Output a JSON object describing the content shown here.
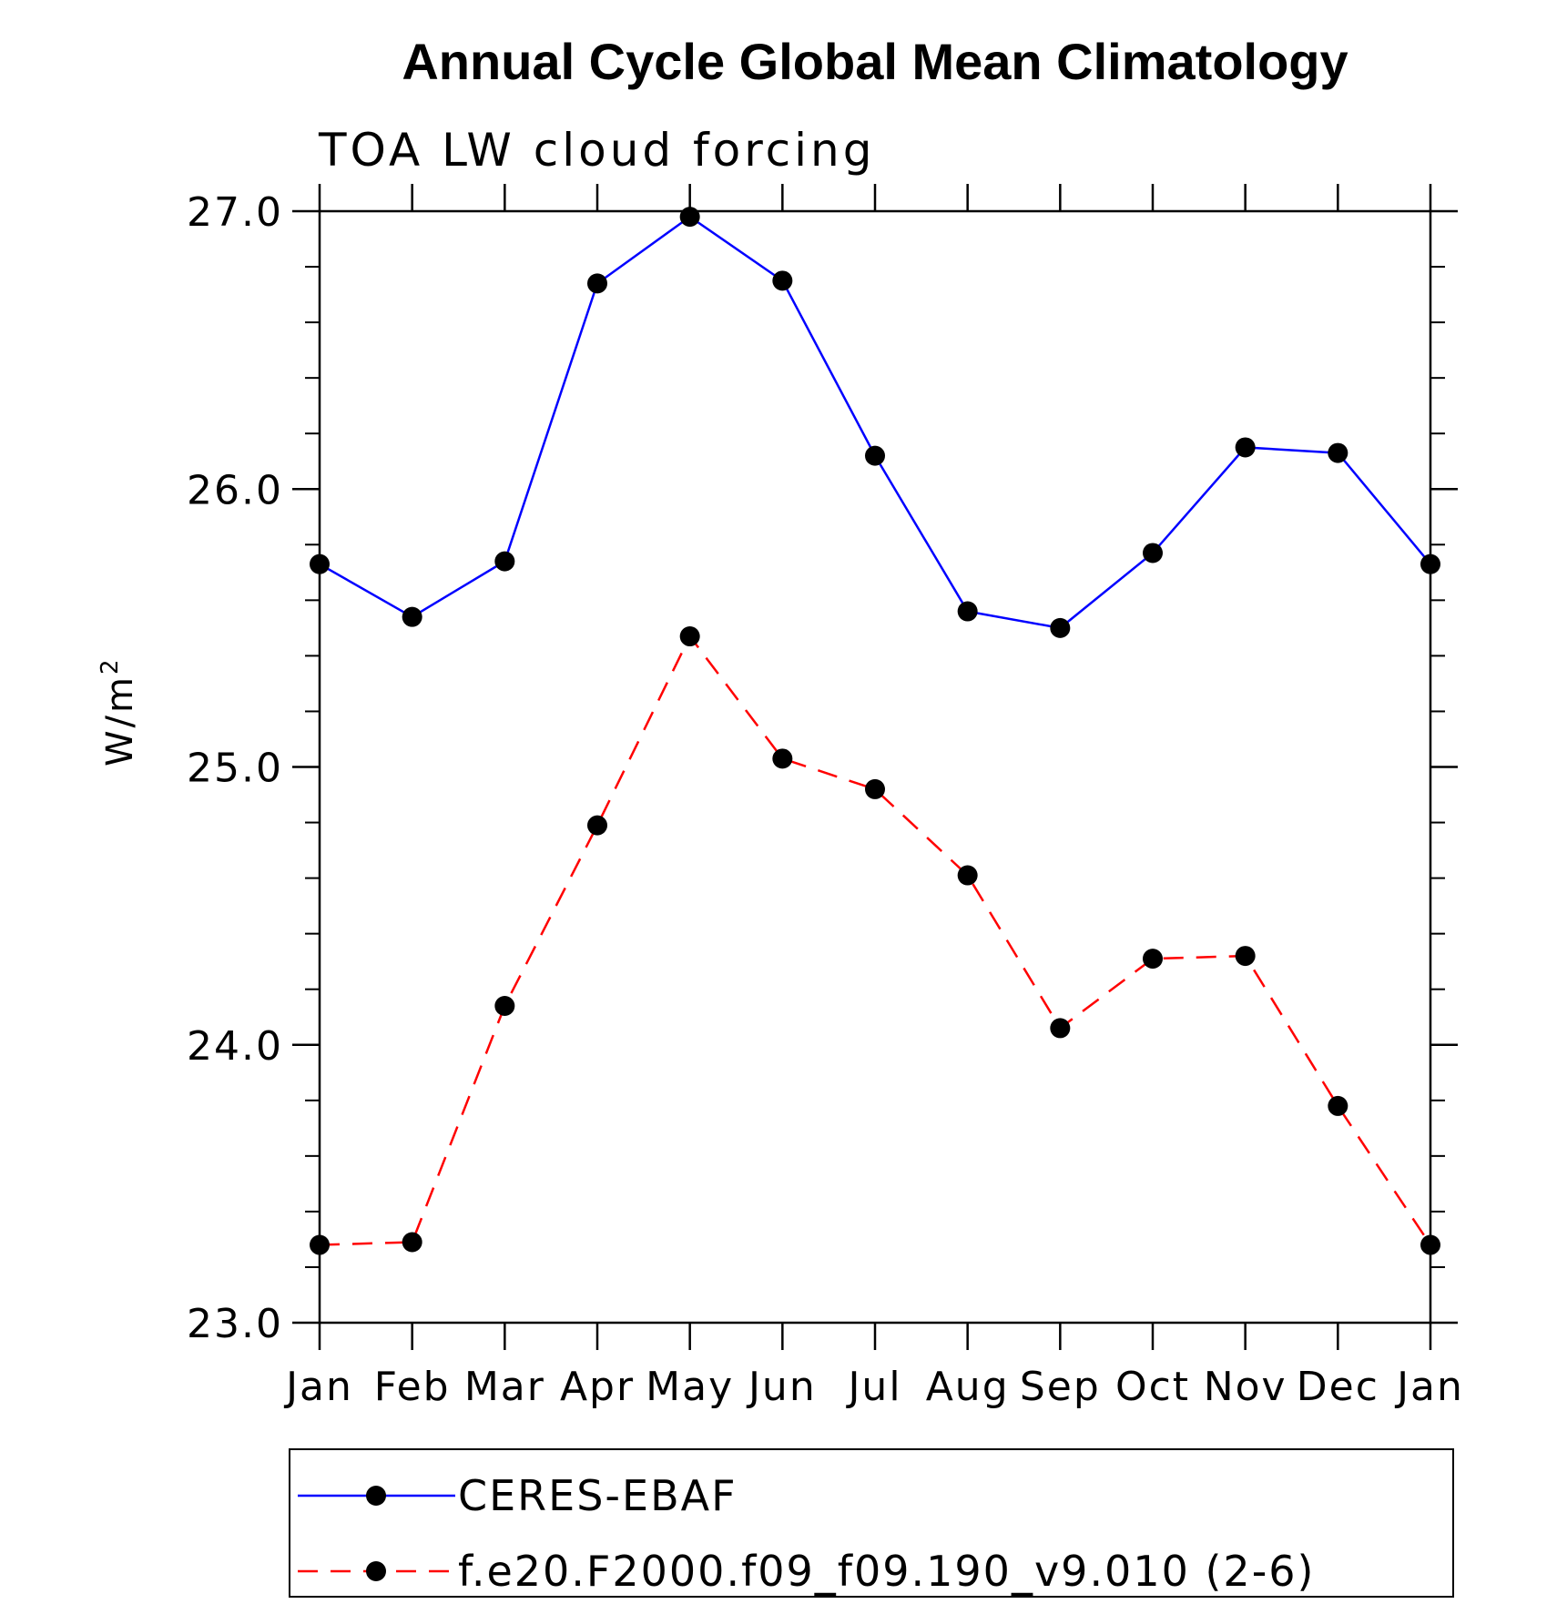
{
  "chart_data": {
    "type": "line",
    "title": "Annual Cycle Global Mean Climatology",
    "subtitle": "TOA LW cloud forcing",
    "ylabel": "W/m",
    "ylabel_superscript": "2",
    "xlabel": "",
    "categories": [
      "Jan",
      "Feb",
      "Mar",
      "Apr",
      "May",
      "Jun",
      "Jul",
      "Aug",
      "Sep",
      "Oct",
      "Nov",
      "Dec",
      "Jan"
    ],
    "ylim": [
      23.0,
      27.0
    ],
    "y_ticks": [
      "23.0",
      "24.0",
      "25.0",
      "26.0",
      "27.0"
    ],
    "y_minor_step": 0.2,
    "grid": false,
    "legend_position": "bottom",
    "series": [
      {
        "name": "CERES-EBAF",
        "color": "#0000ff",
        "dash": "solid",
        "marker": "filled-circle",
        "values": [
          25.73,
          25.54,
          25.74,
          26.74,
          26.98,
          26.75,
          26.12,
          25.56,
          25.5,
          25.77,
          26.15,
          26.13,
          25.73
        ]
      },
      {
        "name": "f.e20.F2000.f09_f09.190_v9.010 (2-6)",
        "color": "#ff0000",
        "dash": "dashed",
        "marker": "filled-circle",
        "values": [
          23.28,
          23.29,
          24.14,
          24.79,
          25.47,
          25.03,
          24.92,
          24.61,
          24.06,
          24.31,
          24.32,
          23.78,
          23.28
        ]
      }
    ]
  }
}
